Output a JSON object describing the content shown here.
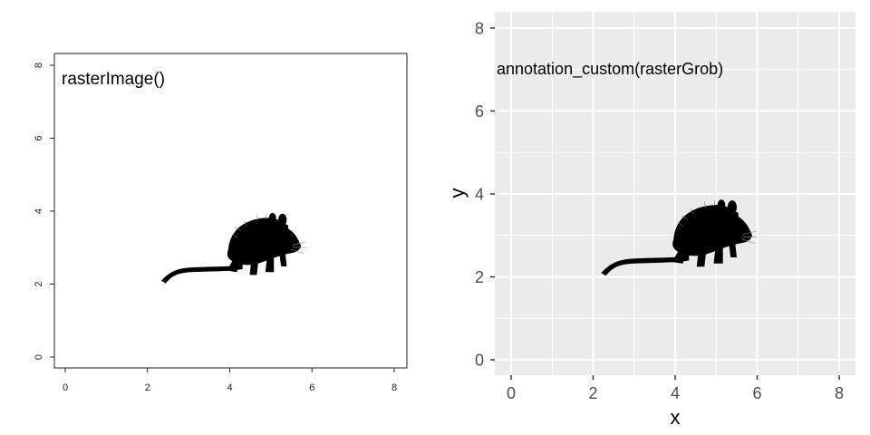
{
  "chart_data": [
    {
      "type": "scatter",
      "title": "",
      "xlabel": "",
      "ylabel": "",
      "xlim": [
        0,
        8
      ],
      "ylim": [
        0,
        8
      ],
      "x_ticks": [
        "0",
        "2",
        "4",
        "6",
        "8"
      ],
      "y_ticks": [
        "0",
        "2",
        "4",
        "6",
        "8"
      ],
      "grid": false,
      "annotation": {
        "text": "rasterImage()",
        "x": 0,
        "y": 7.6
      },
      "image": {
        "icon": "rat-silhouette-icon",
        "xmin": 2,
        "xmax": 6,
        "ymin": 2,
        "ymax": 4
      }
    },
    {
      "type": "scatter",
      "title": "",
      "xlabel": "x",
      "ylabel": "y",
      "xlim": [
        0,
        8
      ],
      "ylim": [
        0,
        8
      ],
      "x_ticks": [
        "0",
        "2",
        "4",
        "6",
        "8"
      ],
      "y_ticks": [
        "0",
        "2",
        "4",
        "6",
        "8"
      ],
      "grid": true,
      "annotation": {
        "text": "annotation_custom(rasterGrob)",
        "x": 0,
        "y": 7
      },
      "image": {
        "icon": "rat-silhouette-icon",
        "xmin": 2,
        "xmax": 6,
        "ymin": 2,
        "ymax": 4
      }
    }
  ]
}
